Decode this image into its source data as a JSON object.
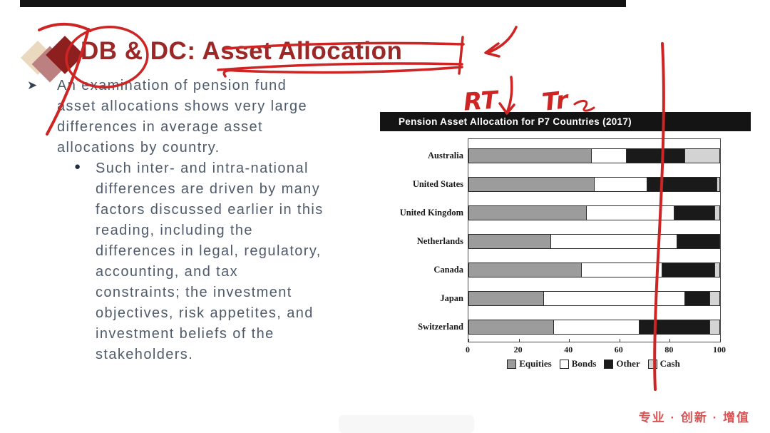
{
  "slide": {
    "title": "DB & DC: Asset Allocation",
    "bullet1": "An examination of pension fund\nasset allocations shows very large\ndifferences in average asset\nallocations by country.",
    "bullet1_marker": "➤",
    "bullet2": "Such inter- and intra-national\ndifferences are driven by many\nfactors discussed earlier in this\nreading, including the\ndifferences in legal, regulatory,\naccounting, and tax\nconstraints; the investment\nobjectives, risk appetites, and\ninvestment beliefs of the\nstakeholders.",
    "bullet2_marker": "●",
    "footer_slogan": "专业 · 创新 · 增值"
  },
  "annotations": {
    "ink_color": "#CE2424",
    "mark_seven": "7",
    "note_left": "RT",
    "note_right": "Tr",
    "description": "hand-drawn red marks: 7 slash over logo, circle around DB, strike and underline on Asset Allocation, curved arrow, RT down-arrow Tr note, long vertical line through chart"
  },
  "chart_data": {
    "type": "bar",
    "orientation": "horizontal",
    "stacked": true,
    "title": "Pension Asset Allocation for P7 Countries (2017)",
    "categories": [
      "Australia",
      "United States",
      "United Kingdom",
      "Netherlands",
      "Canada",
      "Japan",
      "Switzerland"
    ],
    "series": [
      {
        "name": "Equities",
        "color": "#9C9C9C",
        "values": [
          49,
          50,
          47,
          33,
          45,
          30,
          34
        ]
      },
      {
        "name": "Bonds",
        "color": "#FFFFFF",
        "values": [
          14,
          21,
          35,
          50,
          32,
          56,
          34
        ]
      },
      {
        "name": "Other",
        "color": "#1A1A1A",
        "values": [
          23,
          28,
          16,
          17,
          21,
          10,
          28
        ]
      },
      {
        "name": "Cash",
        "color": "#D3D3D3",
        "values": [
          14,
          1,
          2,
          0,
          2,
          4,
          4
        ]
      }
    ],
    "xlim": [
      0,
      100
    ],
    "xticks": [
      0,
      20,
      40,
      60,
      80,
      100
    ],
    "legend_position": "bottom",
    "grid": false
  }
}
